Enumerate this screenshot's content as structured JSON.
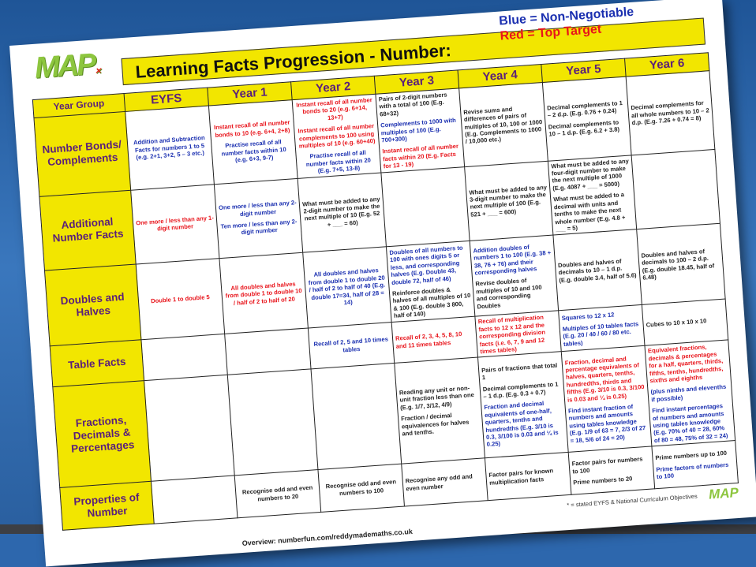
{
  "logo": "MAP",
  "title": "Learning Facts Progression - Number:",
  "legend": {
    "blue": "Blue = Non-Negotiable",
    "red": "Red = Top Target"
  },
  "colors": {
    "blue": "#1a2fb0",
    "red": "#e8141b",
    "header_yellow": "#f2e600",
    "header_text": "#5a1f7a",
    "background": "#2d67ad"
  },
  "table": {
    "corner": "Year Group",
    "years": [
      "EYFS",
      "Year 1",
      "Year 2",
      "Year 3",
      "Year 4",
      "Year 5",
      "Year 6"
    ],
    "rows": [
      {
        "label": "Number Bonds/ Complements",
        "cells": [
          [
            {
              "c": "blue",
              "t": "Addition and Subtraction Facts for numbers 1 to 5 (e.g. 2+1, 3+2, 5 – 3 etc.)"
            }
          ],
          [
            {
              "c": "red",
              "t": "Instant recall of all number bonds to 10 (e.g. 6+4, 2+8)"
            },
            {
              "c": "blue",
              "t": "Practise recall of all number facts within 10 (e.g. 6+3, 9-7)"
            }
          ],
          [
            {
              "c": "red",
              "t": "Instant recall of all number bonds to 20 (e.g. 6+14, 13+7)"
            },
            {
              "c": "red",
              "t": "Instant recall of all number complements to 100 using multiples of 10 (e.g. 60+40)"
            },
            {
              "c": "blue",
              "t": "Practise recall of all number facts within 20 (E.g. 7+5, 13-8)"
            }
          ],
          [
            {
              "c": "black",
              "t": "Pairs of 2-digit numbers with a total of 100 (E.g. 68+32)"
            },
            {
              "c": "blue",
              "t": "Complements to 1000 with multiples of 100 (E.g. 700+300)"
            },
            {
              "c": "red",
              "t": "Instant recall of all number facts within 20 (E.g. Facts for 13 - 19)"
            }
          ],
          [
            {
              "c": "black",
              "t": "Revise sums and differences of pairs of multiples of 10, 100 or 1000 (E.g. Complements to 1000 / 10,000 etc.)"
            }
          ],
          [
            {
              "c": "black",
              "t": "Decimal complements to 1 – 2 d.p. (E.g. 0.76 + 0.24)"
            },
            {
              "c": "black",
              "t": "Decimal complements to 10 – 1 d.p. (E.g. 6.2 + 3.8)"
            }
          ],
          [
            {
              "c": "black",
              "t": "Decimal complements for all whole numbers to 10 – 2 d.p. (E.g. 7.26 + 0.74 = 8)"
            }
          ]
        ]
      },
      {
        "label": "Additional Number Facts",
        "cells": [
          [
            {
              "c": "red",
              "t": "One more / less than any 1-digit number"
            }
          ],
          [
            {
              "c": "blue",
              "t": "One more / less than any 2-digit number"
            },
            {
              "c": "blue",
              "t": "Ten more / less than any 2-digit number"
            }
          ],
          [
            {
              "c": "black",
              "t": "What must be added to any 2-digit number to make the next multiple of 10 (E.g. 52 + ___ = 60)"
            }
          ],
          [],
          [
            {
              "c": "black",
              "t": "What must be added to any 3-digit number to make the next multiple of 100 (E.g. 521 + ___ = 600)"
            }
          ],
          [
            {
              "c": "black",
              "t": "What must be added to any four-digit number to make the next multiple of 1000 (E.g. 4087 + ___ = 5000)"
            },
            {
              "c": "black",
              "t": "What must be added to a decimal with units and tenths to make the next whole number (E.g. 4.8 + ___ = 5)"
            }
          ],
          []
        ]
      },
      {
        "label": "Doubles and Halves",
        "cells": [
          [
            {
              "c": "red",
              "t": "Double 1 to double 5"
            }
          ],
          [
            {
              "c": "red",
              "t": "All doubles and halves from double 1 to double 10 / half of 2 to half of 20"
            }
          ],
          [
            {
              "c": "blue",
              "t": "All doubles and halves from double 1 to double 20 / half of 2 to half of 40 (E.g. double 17=34, half of 28 = 14)"
            }
          ],
          [
            {
              "c": "blue",
              "t": "Doubles of all numbers to 100 with ones digits 5 or less, and corresponding halves (E.g. Double 43, double 72, half of 46)"
            },
            {
              "c": "black",
              "t": "Reinforce doubles & halves of all multiples of 10 & 100 (E.g. double 3 800, half of 140)"
            }
          ],
          [
            {
              "c": "blue",
              "t": "Addition doubles of numbers 1 to 100 (E.g. 38 + 38, 76 + 76) and their corresponding halves"
            },
            {
              "c": "black",
              "t": "Revise doubles of multiples of 10 and 100 and corresponding Doubles"
            }
          ],
          [
            {
              "c": "black",
              "t": "Doubles and halves of decimals to 10 – 1 d.p. (E.g. double 3.4, half of 5.6)"
            }
          ],
          [
            {
              "c": "black",
              "t": "Doubles and halves of decimals to 100 – 2 d.p. (E.g. double 18.45, half of 6.48)"
            }
          ]
        ]
      },
      {
        "label": "Table Facts",
        "cells": [
          [],
          [],
          [
            {
              "c": "blue",
              "t": "Recall of 2, 5 and 10 times tables"
            }
          ],
          [
            {
              "c": "red",
              "t": "Recall of 2, 3, 4, 5, 8, 10 and 11 times tables"
            }
          ],
          [
            {
              "c": "red",
              "t": "Recall of multiplication facts to 12 x 12 and the corresponding division facts (i.e. 6, 7, 9 and 12 times tables)"
            }
          ],
          [
            {
              "c": "blue",
              "t": "Squares to 12 x 12"
            },
            {
              "c": "blue",
              "t": "Multiples of 10 tables facts (E.g. 20 / 40 / 60 / 80 etc. tables)"
            }
          ],
          [
            {
              "c": "black",
              "t": "Cubes to 10 x 10 x 10"
            }
          ]
        ]
      },
      {
        "label": "Fractions, Decimals & Percentages",
        "cells": [
          [],
          [],
          [],
          [
            {
              "c": "black",
              "t": "Reading any unit or non-unit fraction less than one (E.g. 1/7, 3/12, 4/9)"
            },
            {
              "c": "black",
              "t": "Fraction / decimal equivalences for halves and tenths."
            }
          ],
          [
            {
              "c": "black",
              "t": "Pairs of fractions that total 1"
            },
            {
              "c": "black",
              "t": "Decimal complements to 1 – 1 d.p. (E.g. 0.3 + 0.7)"
            },
            {
              "c": "blue",
              "t": "Fraction and decimal equivalents of one-half, quarters, tenths and hundredths (E.g. 3/10 is 0.3, 3/100 is 0.03 and ¼ is 0.25)"
            }
          ],
          [
            {
              "c": "red",
              "t": "Fraction, decimal and percentage equivalents of halves, quarters, tenths, hundredths, thirds and fifths (E.g. 3/10 is 0.3, 3/100 is 0.03 and ¼ is 0.25)"
            },
            {
              "c": "blue",
              "t": "Find instant fraction of numbers and amounts using tables knowledge (E.g. 1/9 of 63 = 7, 2/3 of 27 = 18, 5/6 of 24 = 20)"
            }
          ],
          [
            {
              "c": "red",
              "t": "Equivalent fractions, decimals & percentages for a half, quarters, thirds, fifths, tenths, hundredths, sixths and eighths"
            },
            {
              "c": "blue",
              "t": "(plus ninths and elevenths if possible)"
            },
            {
              "c": "blue",
              "t": "Find instant percentages of numbers and amounts using tables knowledge (E.g. 70% of 40 = 28, 60% of 80 = 48, 75% of 32 = 24)"
            }
          ]
        ]
      },
      {
        "label": "Properties of Number",
        "cells": [
          [],
          [
            {
              "c": "black",
              "t": "Recognise odd and even numbers to 20"
            }
          ],
          [
            {
              "c": "black",
              "t": "Recognise odd and even numbers to 100"
            }
          ],
          [
            {
              "c": "black",
              "t": "Recognise any odd and even number"
            }
          ],
          [
            {
              "c": "black",
              "t": "Factor pairs for known multiplication facts"
            }
          ],
          [
            {
              "c": "black",
              "t": "Factor pairs for numbers to 100"
            },
            {
              "c": "black",
              "t": "Prime numbers to 20"
            }
          ],
          [
            {
              "c": "black",
              "t": "Prime numbers up to 100"
            },
            {
              "c": "blue",
              "t": "Prime factors of numbers to 100"
            }
          ]
        ]
      }
    ]
  },
  "footnote": "* = stated EYFS & National Curriculum Objectives",
  "footer_logo": "MAP",
  "overview": "Overview: numberfun.com/reddymademaths.co.uk"
}
